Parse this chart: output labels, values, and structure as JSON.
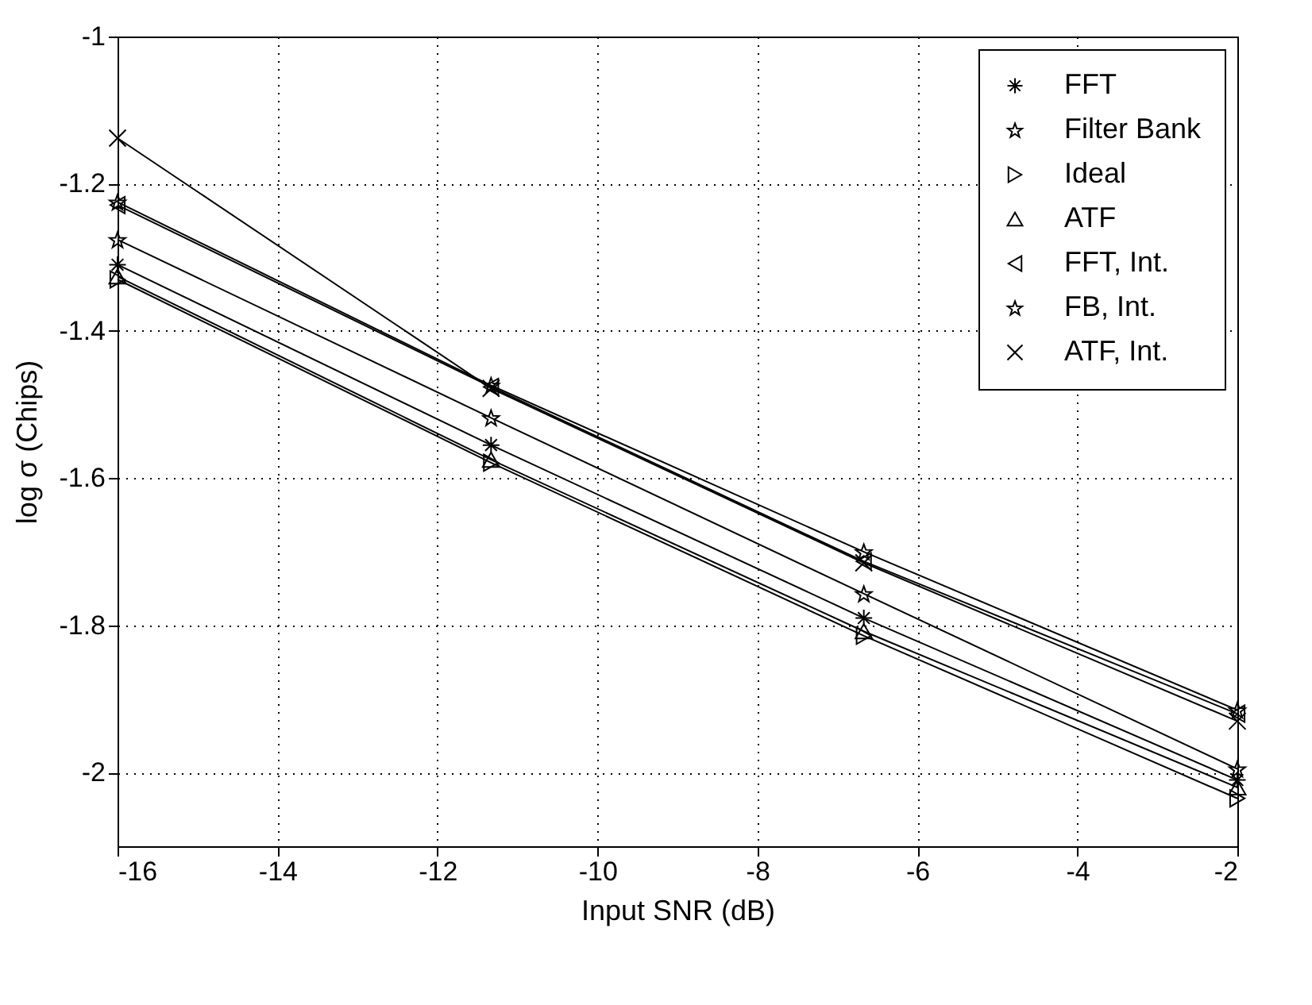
{
  "chart_data": {
    "type": "line",
    "xlabel": "Input SNR (dB)",
    "ylabel": "log σ (Chips)",
    "x": [
      -16,
      -11.33,
      -6.67,
      -2
    ],
    "xlim": [
      -16,
      -2
    ],
    "xticks": [
      -16,
      -14,
      -12,
      -10,
      -8,
      -6,
      -4,
      -2
    ],
    "ylim": [
      -2.1,
      -1
    ],
    "yticks": [
      -2,
      -1.8,
      -1.6,
      -1.4,
      -1.2,
      -1
    ],
    "grid": true,
    "legend": "top right",
    "line_style": "solid",
    "series": [
      {
        "name": "FFT",
        "color": "#000000",
        "marker": "cross",
        "values": [
          -1.31,
          -1.555,
          -1.79,
          -2.01
        ]
      },
      {
        "name": "Filter Bank",
        "color": "#000000",
        "marker": "star",
        "values": [
          -1.276,
          -1.518,
          -1.757,
          -1.995
        ]
      },
      {
        "name": "Ideal",
        "color": "#000000",
        "marker": "triangle-right",
        "values": [
          -1.33,
          -1.579,
          -1.814,
          -2.035
        ]
      },
      {
        "name": "ATF",
        "color": "#000000",
        "marker": "triangle-up",
        "values": [
          -1.326,
          -1.575,
          -1.808,
          -2.02
        ]
      },
      {
        "name": "FFT, Int.",
        "color": "#000000",
        "marker": "triangle-left",
        "values": [
          -1.229,
          -1.476,
          -1.713,
          -1.92
        ]
      },
      {
        "name": "FB, Int.",
        "color": "#000000",
        "marker": "star",
        "values": [
          -1.225,
          -1.474,
          -1.7,
          -1.915
        ]
      },
      {
        "name": "ATF, Int.",
        "color": "#000000",
        "marker": "x",
        "values": [
          -1.138,
          -1.478,
          -1.715,
          -1.93
        ]
      }
    ]
  }
}
